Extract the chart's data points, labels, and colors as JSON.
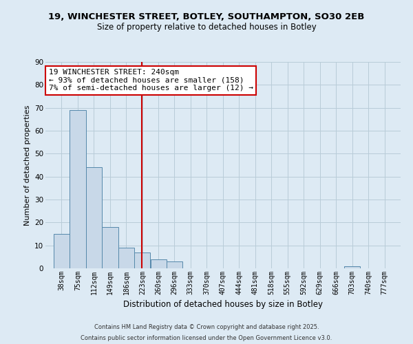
{
  "title_line1": "19, WINCHESTER STREET, BOTLEY, SOUTHAMPTON, SO30 2EB",
  "title_line2": "Size of property relative to detached houses in Botley",
  "xlabel": "Distribution of detached houses by size in Botley",
  "ylabel": "Number of detached properties",
  "bar_edges": [
    38,
    75,
    112,
    149,
    186,
    223,
    260,
    296,
    333,
    370,
    407,
    444,
    481,
    518,
    555,
    592,
    629,
    666,
    703,
    740,
    777
  ],
  "bar_heights": [
    15,
    69,
    44,
    18,
    9,
    7,
    4,
    3,
    0,
    0,
    0,
    0,
    0,
    0,
    0,
    0,
    0,
    0,
    1,
    0,
    0
  ],
  "bar_color": "#c8d8e8",
  "bar_edge_color": "#5588aa",
  "vline_x": 240,
  "vline_color": "#cc0000",
  "annotation_text": "19 WINCHESTER STREET: 240sqm\n← 93% of detached houses are smaller (158)\n7% of semi-detached houses are larger (12) →",
  "annotation_box_color": "#ffffff",
  "annotation_box_edge_color": "#cc0000",
  "ylim": [
    0,
    90
  ],
  "yticks": [
    0,
    10,
    20,
    30,
    40,
    50,
    60,
    70,
    80,
    90
  ],
  "grid_color": "#b8ccd8",
  "plot_bg_color": "#ddeaf4",
  "fig_bg_color": "#ddeaf4",
  "footer_line1": "Contains HM Land Registry data © Crown copyright and database right 2025.",
  "footer_line2": "Contains public sector information licensed under the Open Government Licence v3.0.",
  "tick_labels": [
    "38sqm",
    "75sqm",
    "112sqm",
    "149sqm",
    "186sqm",
    "223sqm",
    "260sqm",
    "296sqm",
    "333sqm",
    "370sqm",
    "407sqm",
    "444sqm",
    "481sqm",
    "518sqm",
    "555sqm",
    "592sqm",
    "629sqm",
    "666sqm",
    "703sqm",
    "740sqm",
    "777sqm"
  ],
  "title1_fontsize": 9.5,
  "title2_fontsize": 8.5,
  "xlabel_fontsize": 8.5,
  "ylabel_fontsize": 8.0,
  "tick_fontsize": 7.0,
  "annotation_fontsize": 8.0,
  "footer_fontsize": 6.0
}
